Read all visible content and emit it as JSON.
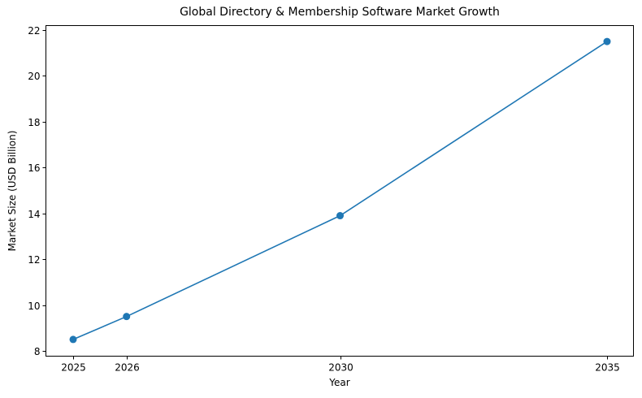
{
  "chart_data": {
    "type": "line",
    "title": "Global Directory & Membership Software Market Growth",
    "xlabel": "Year",
    "ylabel": "Market Size (USD Billion)",
    "x": [
      2025,
      2026,
      2030,
      2035
    ],
    "series": [
      {
        "name": "Market Size",
        "values": [
          8.5,
          9.5,
          13.9,
          21.5
        ],
        "color": "#1f77b4",
        "marker": "circle"
      }
    ],
    "xticks": [
      "2025",
      "2026",
      "2030",
      "2035"
    ],
    "yticks": [
      "8",
      "10",
      "12",
      "14",
      "16",
      "18",
      "20",
      "22"
    ],
    "ylim": [
      7.8,
      22.2
    ],
    "xlim": [
      2024.5,
      2035.5
    ],
    "grid": false,
    "legend": null
  }
}
